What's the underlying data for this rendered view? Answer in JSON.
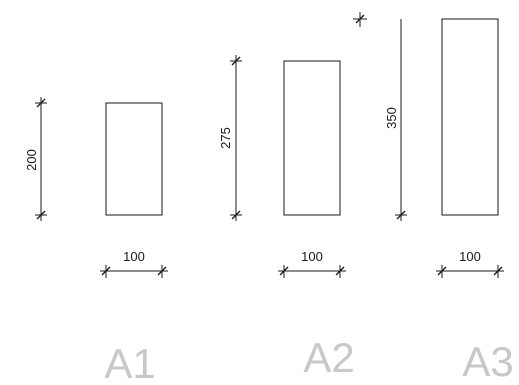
{
  "panels": [
    {
      "label": "A1",
      "height_dim": "200",
      "width_dim": "100"
    },
    {
      "label": "A2",
      "height_dim": "275",
      "width_dim": "100"
    },
    {
      "label": "A3",
      "height_dim": "350",
      "width_dim": "100"
    }
  ]
}
